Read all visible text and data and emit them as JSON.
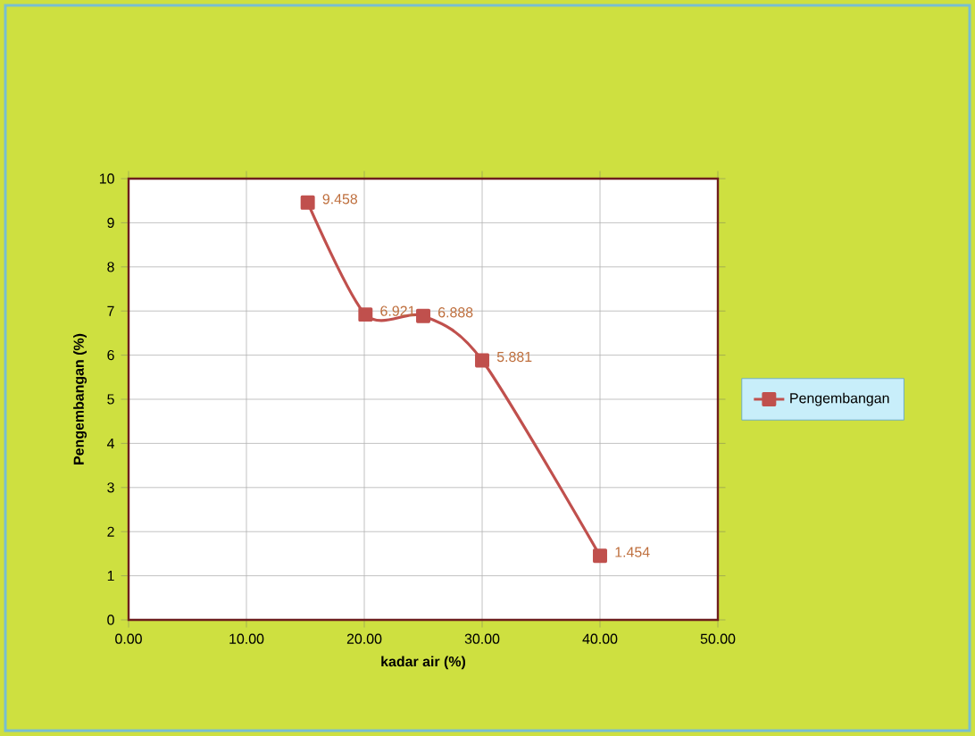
{
  "chart_data": {
    "type": "line",
    "xlabel": "kadar air (%)",
    "ylabel": "Pengembangan (%)",
    "series": [
      {
        "name": "Pengembangan",
        "color": "#c0504d",
        "x": [
          15.2,
          20.1,
          25.0,
          30.0,
          40.0
        ],
        "values": [
          9.458,
          6.921,
          6.888,
          5.881,
          1.454
        ]
      }
    ],
    "xlim": [
      0,
      50
    ],
    "ylim": [
      0,
      10
    ],
    "xticks": [
      {
        "value": 0,
        "label": "0.00"
      },
      {
        "value": 10,
        "label": "10.00"
      },
      {
        "value": 20,
        "label": "20.00"
      },
      {
        "value": 30,
        "label": "30.00"
      },
      {
        "value": 40,
        "label": "40.00"
      },
      {
        "value": 50,
        "label": "50.00"
      }
    ],
    "yticks": [
      0,
      1,
      2,
      3,
      4,
      5,
      6,
      7,
      8,
      9,
      10
    ],
    "grid": true,
    "legend": "right",
    "marker": "square",
    "line_style": "solid",
    "data_labels": true
  }
}
